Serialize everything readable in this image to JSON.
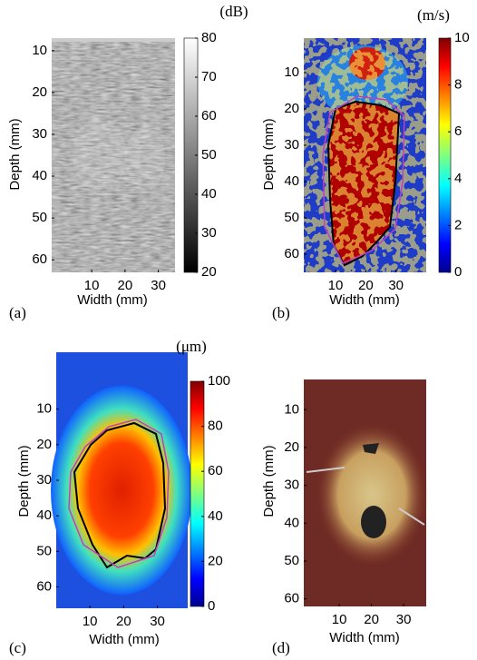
{
  "panels": [
    {
      "label": "(a)",
      "x_label": "Width (mm)",
      "y_label": "Depth (mm)",
      "xlim": [
        -2,
        35
      ],
      "xticks": [
        10,
        20,
        30
      ],
      "ylim": [
        7,
        63
      ],
      "yticks": [
        10,
        20,
        30,
        40,
        50,
        60
      ],
      "colorbar": {
        "unit": "(dB)",
        "lim": [
          20,
          80
        ],
        "ticks": [
          20,
          30,
          40,
          50,
          60,
          70,
          80
        ]
      }
    },
    {
      "label": "(b)",
      "x_label": "Width (mm)",
      "y_label": "Depth (mm)",
      "xlim": [
        -0.5,
        40
      ],
      "xticks": [
        10,
        20,
        30
      ],
      "ylim": [
        0.5,
        65
      ],
      "yticks": [
        10,
        20,
        30,
        40,
        50,
        60
      ],
      "colorbar": {
        "unit": "(m/s)",
        "lim": [
          0,
          10
        ],
        "ticks": [
          0,
          2,
          4,
          6,
          8,
          10
        ]
      }
    },
    {
      "label": "(c)",
      "x_label": "Width (mm)",
      "y_label": "Depth (mm)",
      "xlim": [
        0,
        39
      ],
      "xticks": [
        10,
        20,
        30
      ],
      "ylim": [
        -6,
        66
      ],
      "yticks": [
        10,
        20,
        30,
        40,
        50,
        60
      ],
      "colorbar": {
        "unit": "(μm)",
        "lim": [
          0,
          100
        ],
        "ticks": [
          0,
          20,
          40,
          60,
          80,
          100
        ]
      }
    },
    {
      "label": "(d)",
      "x_label": "Width (mm)",
      "y_label": "Depth (mm)",
      "xlim": [
        -1,
        37
      ],
      "xticks": [
        10,
        20,
        30
      ],
      "ylim": [
        2,
        62
      ],
      "yticks": [
        10,
        20,
        30,
        40,
        50,
        60
      ]
    }
  ]
}
